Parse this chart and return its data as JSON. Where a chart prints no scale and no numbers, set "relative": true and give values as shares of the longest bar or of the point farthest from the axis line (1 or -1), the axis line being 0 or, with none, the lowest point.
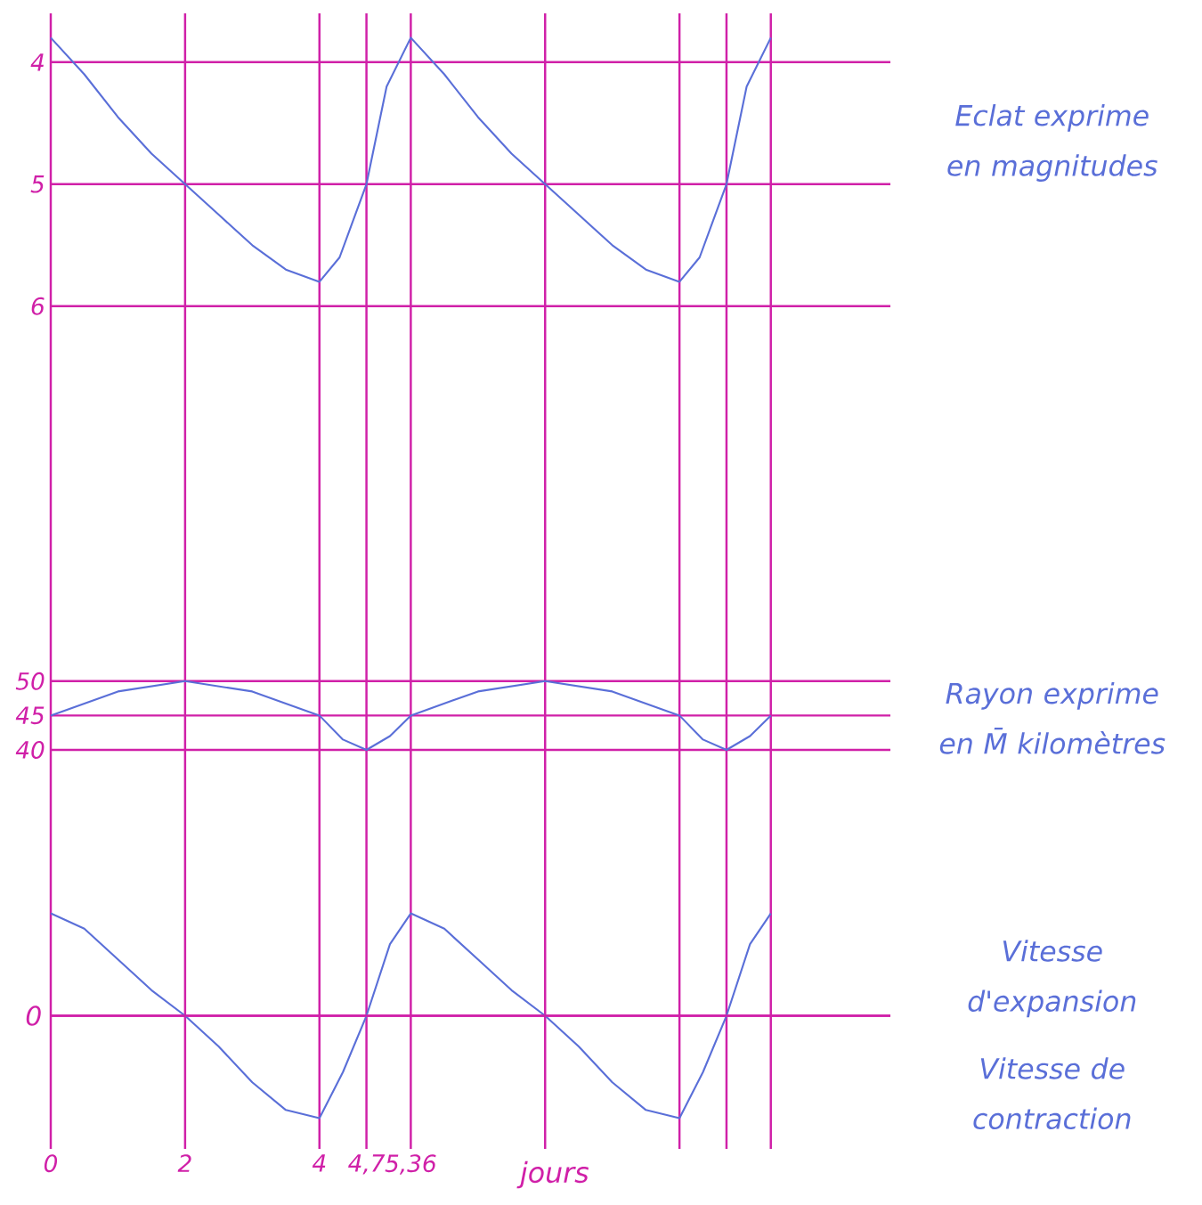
{
  "chart_data": [
    {
      "type": "line",
      "annotations": [
        "Eclat exprime en magnitudes"
      ],
      "x": [
        0,
        0.5,
        1,
        1.5,
        2,
        2.5,
        3,
        3.5,
        4,
        4.3,
        4.7,
        5,
        5.36,
        5.86,
        6.36,
        6.86,
        7.36,
        7.86,
        8.36,
        8.86,
        9.36,
        9.66,
        10.06,
        10.36,
        10.72
      ],
      "series": [
        {
          "color": "#5a6fd8",
          "values": [
            3.8,
            4.1,
            4.45,
            4.75,
            5,
            5.25,
            5.5,
            5.7,
            5.8,
            5.6,
            5,
            4.2,
            3.8,
            4.1,
            4.45,
            4.75,
            5,
            5.25,
            5.5,
            5.7,
            5.8,
            5.6,
            5,
            4.2,
            3.8
          ]
        }
      ],
      "xlim": [
        0,
        12.5
      ],
      "ylim": [
        8.6,
        3.6
      ],
      "xticks": [
        {
          "value": 0,
          "label": null
        },
        {
          "value": 2,
          "label": null
        },
        {
          "value": 4,
          "label": null
        },
        {
          "value": 4.7,
          "label": null
        },
        {
          "value": 5.36,
          "label": null
        },
        {
          "value": 7.36,
          "label": null
        },
        {
          "value": 9.36,
          "label": null
        },
        {
          "value": 10.06,
          "label": null
        },
        {
          "value": 10.72,
          "label": null
        }
      ],
      "yticks": [
        4,
        5,
        6
      ],
      "grid": true,
      "tick_labels": "y"
    },
    {
      "type": "line",
      "annotations": [
        "Rayon exprime en M̄ kilomètres"
      ],
      "x": [
        0,
        1,
        2,
        3,
        4,
        4.35,
        4.7,
        5.05,
        5.36,
        6.36,
        7.36,
        8.36,
        9.36,
        9.71,
        10.06,
        10.41,
        10.72
      ],
      "series": [
        {
          "color": "#5a6fd8",
          "values": [
            45,
            48.5,
            50,
            48.5,
            45,
            41.5,
            40,
            42,
            45,
            48.5,
            50,
            48.5,
            45,
            41.5,
            40,
            42,
            45
          ]
        }
      ],
      "xlim": [
        0,
        12.5
      ],
      "ylim": [
        24.7,
        58.4
      ],
      "xticks": [
        {
          "value": 0,
          "label": null
        },
        {
          "value": 2,
          "label": null
        },
        {
          "value": 4,
          "label": null
        },
        {
          "value": 4.7,
          "label": null
        },
        {
          "value": 5.36,
          "label": null
        },
        {
          "value": 7.36,
          "label": null
        },
        {
          "value": 9.36,
          "label": null
        },
        {
          "value": 10.06,
          "label": null
        },
        {
          "value": 10.72,
          "label": null
        }
      ],
      "yticks": [
        50,
        45,
        40
      ],
      "grid": true,
      "tick_labels": "y"
    },
    {
      "type": "line",
      "relative": true,
      "xlabel": "jours",
      "annotations": [
        "Vitesse d'expansion",
        "Vitesse de contraction"
      ],
      "x": [
        0,
        0.5,
        1,
        1.5,
        2,
        2.5,
        3,
        3.5,
        4,
        4.35,
        4.7,
        5.05,
        5.36,
        5.86,
        6.36,
        6.86,
        7.36,
        7.86,
        8.36,
        8.86,
        9.36,
        9.71,
        10.06,
        10.41,
        10.72
      ],
      "series": [
        {
          "color": "#5a6fd8",
          "values": [
            1,
            0.85,
            0.55,
            0.25,
            0,
            -0.3,
            -0.65,
            -0.92,
            -1,
            -0.55,
            0,
            0.7,
            1,
            0.85,
            0.55,
            0.25,
            0,
            -0.3,
            -0.65,
            -0.92,
            -1,
            -0.55,
            0,
            0.7,
            1
          ]
        }
      ],
      "xlim": [
        0,
        12.5
      ],
      "xticks": [
        0,
        2,
        4,
        {
          "value": 4.7,
          "label": "4,7"
        },
        {
          "value": 5.36,
          "label": "5,36"
        },
        {
          "value": 7.36,
          "label": null
        },
        {
          "value": 9.36,
          "label": null
        },
        {
          "value": 10.06,
          "label": null
        },
        {
          "value": 10.72,
          "label": null
        }
      ],
      "grid": "x",
      "tick_labels": "x",
      "ref_lines": [
        {
          "axis": "y",
          "value": 0,
          "label": "0"
        }
      ]
    }
  ]
}
